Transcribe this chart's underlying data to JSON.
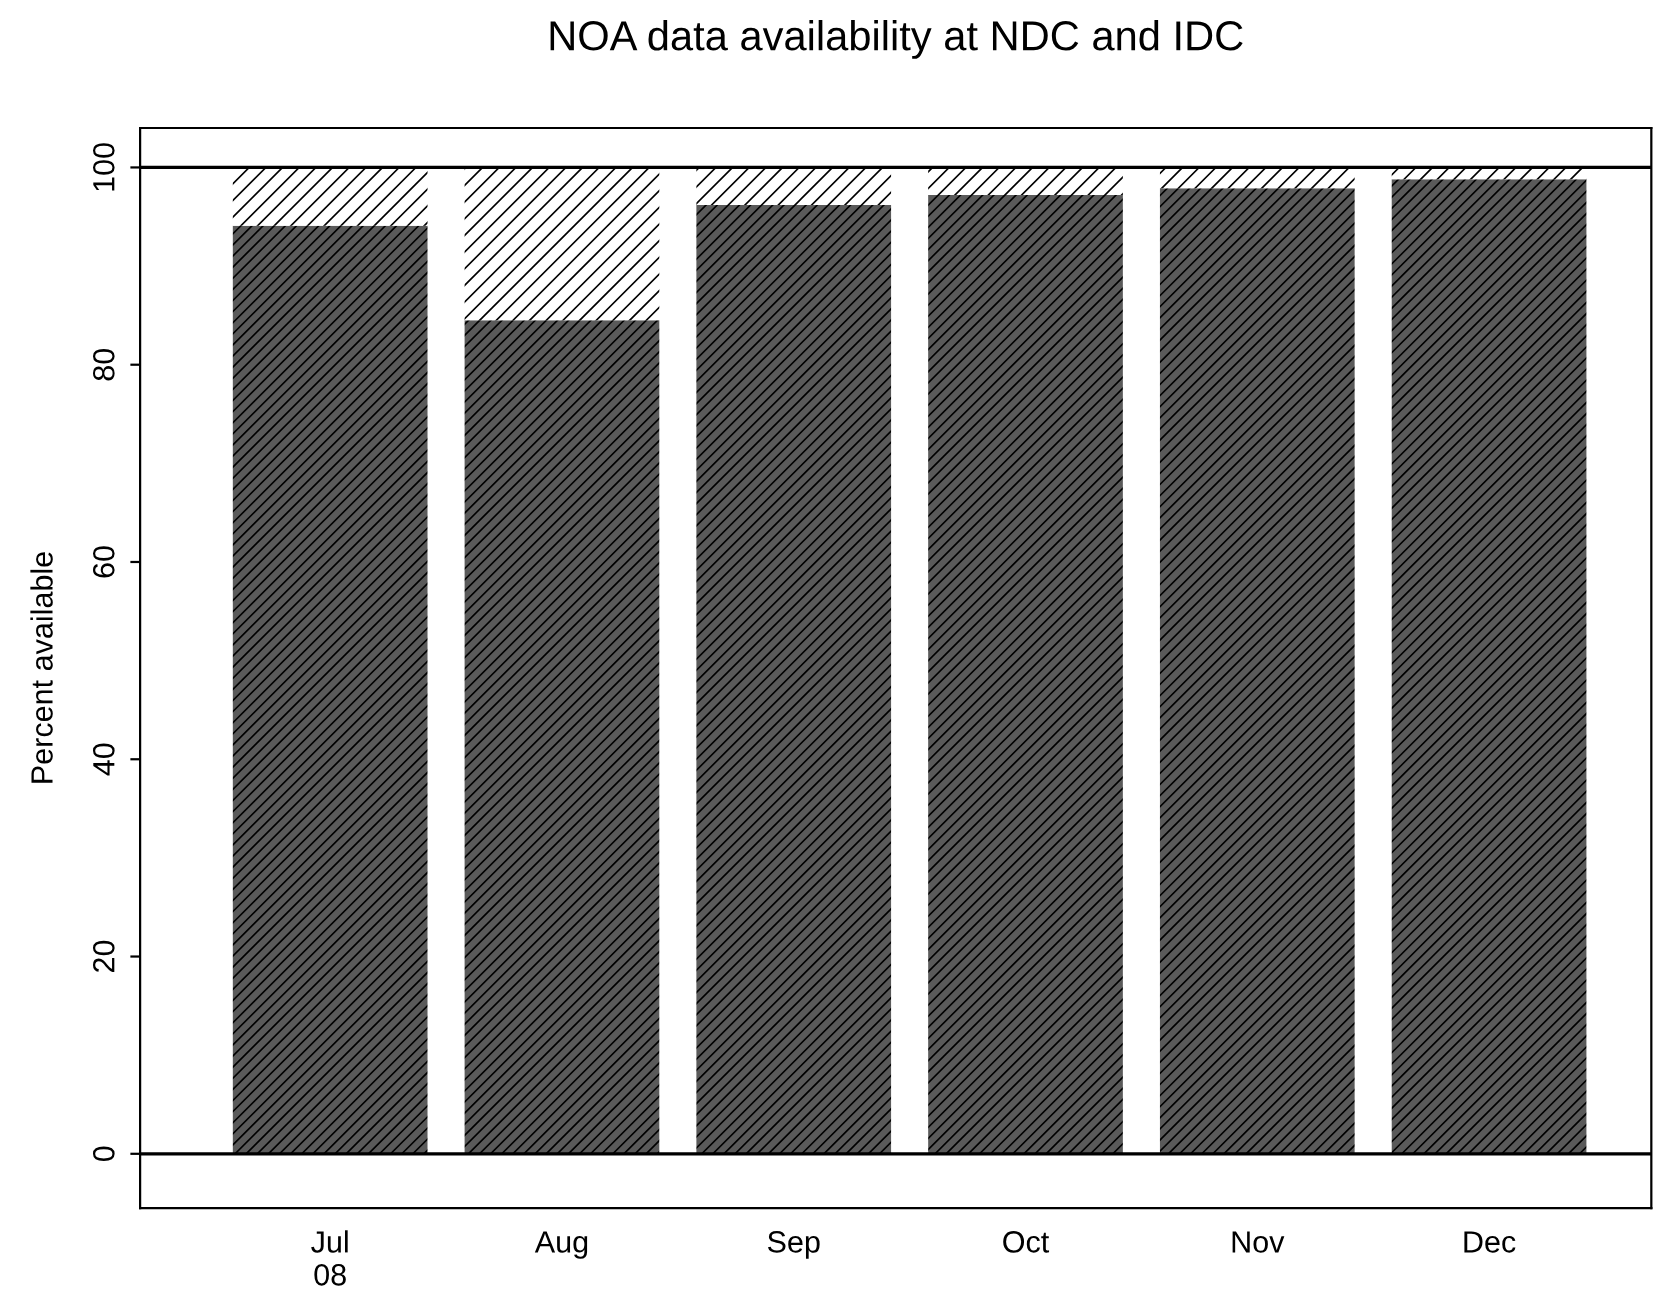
{
  "chart_data": {
    "type": "bar",
    "title": "NOA data availability at NDC and IDC",
    "ylabel": "Percent available",
    "categories": [
      "Jul\n08",
      "Aug",
      "Sep",
      "Oct",
      "Nov",
      "Dec"
    ],
    "stacked": true,
    "series": [
      {
        "color": "#5a5a5a",
        "values": [
          94.1,
          84.5,
          96.2,
          97.2,
          97.9,
          98.8
        ]
      },
      {
        "color": "#ffffff",
        "values": [
          5.9,
          15.5,
          3.8,
          2.8,
          2.1,
          1.2
        ]
      }
    ],
    "ylim": [
      -5.5,
      104
    ],
    "yticks": [
      0,
      20,
      40,
      60,
      80,
      100
    ],
    "ref_lines": [
      {
        "axis": "y",
        "value": 0,
        "color": "#000000"
      },
      {
        "axis": "y",
        "value": 100,
        "color": "#000000"
      }
    ],
    "grid": false,
    "legend": false
  }
}
